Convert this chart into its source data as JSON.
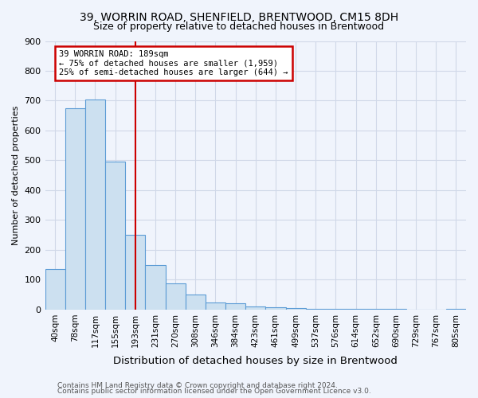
{
  "title1": "39, WORRIN ROAD, SHENFIELD, BRENTWOOD, CM15 8DH",
  "title2": "Size of property relative to detached houses in Brentwood",
  "xlabel": "Distribution of detached houses by size in Brentwood",
  "ylabel": "Number of detached properties",
  "footnote1": "Contains HM Land Registry data © Crown copyright and database right 2024.",
  "footnote2": "Contains public sector information licensed under the Open Government Licence v3.0.",
  "categories": [
    "40sqm",
    "78sqm",
    "117sqm",
    "155sqm",
    "193sqm",
    "231sqm",
    "270sqm",
    "308sqm",
    "346sqm",
    "384sqm",
    "423sqm",
    "461sqm",
    "499sqm",
    "537sqm",
    "576sqm",
    "614sqm",
    "652sqm",
    "690sqm",
    "729sqm",
    "767sqm",
    "805sqm"
  ],
  "values": [
    135,
    675,
    705,
    495,
    250,
    150,
    88,
    50,
    25,
    20,
    10,
    8,
    5,
    3,
    2,
    2,
    2,
    2,
    0,
    0,
    2
  ],
  "bar_color": "#cce0f0",
  "bar_edge_color": "#5b9bd5",
  "red_line_index": 4,
  "red_line_color": "#cc0000",
  "annotation_text": "39 WORRIN ROAD: 189sqm\n← 75% of detached houses are smaller (1,959)\n25% of semi-detached houses are larger (644) →",
  "annotation_box_color": "white",
  "annotation_box_edge_color": "#cc0000",
  "ylim": [
    0,
    900
  ],
  "yticks": [
    0,
    100,
    200,
    300,
    400,
    500,
    600,
    700,
    800,
    900
  ],
  "grid_color": "#d0d8e8",
  "background_color": "#f0f4fc",
  "fig_width": 6.0,
  "fig_height": 5.0
}
